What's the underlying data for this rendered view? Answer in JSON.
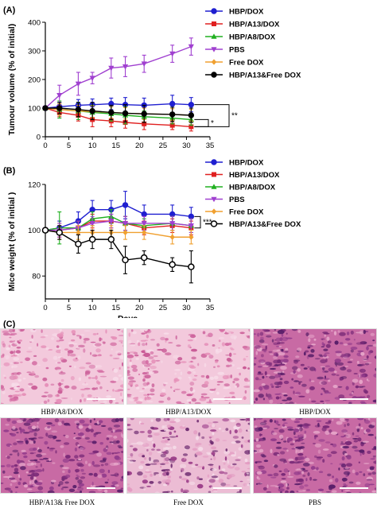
{
  "panels": {
    "a": "(A)",
    "b": "(B)",
    "c": "(C)"
  },
  "colors": {
    "HBP/DOX": "#1f1fd0",
    "HBP/A13/DOX": "#e02020",
    "HBP/A8/DOX": "#20b020",
    "PBS": "#a040d0",
    "Free DOX": "#f0a030",
    "HBP/A13&Free DOX": "#000000"
  },
  "chart_data": [
    {
      "type": "line",
      "title": "",
      "xlabel": "",
      "ylabel": "Tumour volume (% of initial)",
      "xlim": [
        0,
        35
      ],
      "ylim": [
        0,
        400
      ],
      "xticks": [
        0,
        5,
        10,
        15,
        20,
        25,
        30,
        35
      ],
      "yticks": [
        0,
        100,
        200,
        300,
        400
      ],
      "legend": "top-right",
      "annotations": [
        "*",
        "**"
      ],
      "x": [
        0,
        3,
        7,
        10,
        14,
        17,
        21,
        27,
        31
      ],
      "series": [
        {
          "name": "HBP/DOX",
          "marker": "circle",
          "values": [
            100,
            105,
            110,
            112,
            115,
            112,
            110,
            115,
            112
          ],
          "err": [
            5,
            15,
            20,
            20,
            20,
            25,
            25,
            30,
            25
          ]
        },
        {
          "name": "HBP/A13/DOX",
          "marker": "square",
          "values": [
            100,
            85,
            75,
            60,
            55,
            50,
            45,
            40,
            35
          ],
          "err": [
            5,
            15,
            20,
            25,
            20,
            20,
            20,
            15,
            15
          ]
        },
        {
          "name": "HBP/A8/DOX",
          "marker": "triangle",
          "values": [
            100,
            95,
            90,
            85,
            80,
            75,
            70,
            65,
            60
          ],
          "err": [
            5,
            30,
            30,
            25,
            25,
            30,
            20,
            20,
            20
          ]
        },
        {
          "name": "PBS",
          "marker": "triangle-down",
          "values": [
            100,
            145,
            185,
            205,
            240,
            245,
            255,
            290,
            315
          ],
          "err": [
            5,
            35,
            40,
            20,
            35,
            35,
            30,
            30,
            30
          ]
        },
        {
          "name": "Free DOX",
          "marker": "diamond",
          "values": [
            100,
            95,
            90,
            88,
            85,
            82,
            80,
            78,
            75
          ],
          "err": [
            5,
            20,
            20,
            20,
            20,
            20,
            20,
            20,
            20
          ]
        },
        {
          "name": "HBP/A13&Free DOX",
          "marker": "circle-filled",
          "values": [
            100,
            100,
            95,
            90,
            85,
            82,
            80,
            78,
            75
          ],
          "err": [
            5,
            20,
            25,
            30,
            25,
            30,
            30,
            25,
            25
          ]
        }
      ]
    },
    {
      "type": "line",
      "title": "",
      "xlabel": "Days",
      "ylabel": "Mice weight (% of initial )",
      "xlim": [
        0,
        35
      ],
      "ylim": [
        70,
        120
      ],
      "xticks": [
        0,
        5,
        10,
        15,
        20,
        25,
        30,
        35
      ],
      "yticks": [
        80,
        100,
        120
      ],
      "legend": "top-right",
      "annotations": [
        "***"
      ],
      "x": [
        0,
        3,
        7,
        10,
        14,
        17,
        21,
        27,
        31
      ],
      "series": [
        {
          "name": "HBP/DOX",
          "marker": "circle",
          "values": [
            100,
            101,
            104,
            109,
            109,
            111,
            107,
            107,
            106
          ],
          "err": [
            1,
            3,
            4,
            4,
            4,
            6,
            4,
            4,
            4
          ]
        },
        {
          "name": "HBP/A13/DOX",
          "marker": "square",
          "values": [
            100,
            100,
            101,
            104,
            104,
            103,
            101,
            102,
            101
          ],
          "err": [
            1,
            3,
            3,
            3,
            3,
            3,
            3,
            3,
            3
          ]
        },
        {
          "name": "HBP/A8/DOX",
          "marker": "triangle",
          "values": [
            100,
            101,
            101,
            105,
            106,
            103,
            102,
            103,
            102
          ],
          "err": [
            1,
            7,
            3,
            3,
            3,
            3,
            3,
            3,
            3
          ]
        },
        {
          "name": "PBS",
          "marker": "triangle-down",
          "values": [
            100,
            100,
            101,
            103,
            104,
            103,
            103,
            103,
            102
          ],
          "err": [
            1,
            3,
            3,
            3,
            3,
            3,
            3,
            3,
            3
          ]
        },
        {
          "name": "Free DOX",
          "marker": "diamond",
          "values": [
            100,
            99,
            99,
            99,
            99,
            99,
            99,
            97,
            97
          ],
          "err": [
            1,
            3,
            3,
            3,
            3,
            3,
            3,
            3,
            3
          ]
        },
        {
          "name": "HBP/A13&Free DOX",
          "marker": "circle-open",
          "values": [
            100,
            99,
            94,
            96,
            96,
            87,
            88,
            85,
            84
          ],
          "err": [
            1,
            3,
            4,
            4,
            4,
            6,
            3,
            3,
            7
          ]
        }
      ]
    }
  ],
  "micrographs": [
    {
      "caption": "HBP/A8/DOX",
      "tone": "light"
    },
    {
      "caption": "HBP/A13/DOX",
      "tone": "light"
    },
    {
      "caption": "HBP/DOX",
      "tone": "dark"
    },
    {
      "caption": "HBP/A13& Free DOX",
      "tone": "dark"
    },
    {
      "caption": "Free DOX",
      "tone": "mixed"
    },
    {
      "caption": "PBS",
      "tone": "dark"
    }
  ]
}
